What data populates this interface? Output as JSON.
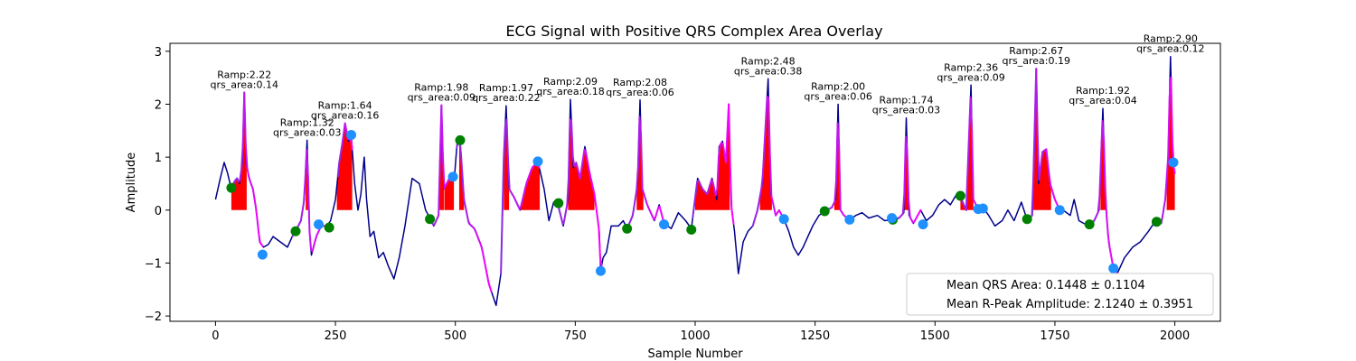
{
  "chart_data": {
    "type": "line",
    "title": "ECG Signal with Positive QRS Complex Area Overlay",
    "xlabel": "Sample Number",
    "ylabel": "Amplitude",
    "xlim": [
      -95,
      2095
    ],
    "ylim": [
      -2.1,
      3.15
    ],
    "xticks": [
      0,
      250,
      500,
      750,
      1000,
      1250,
      1500,
      1750,
      2000
    ],
    "yticks": [
      -2,
      -1,
      0,
      1,
      2,
      3
    ],
    "grid": false,
    "legend_position": "bottom-right",
    "legend_entries": [
      "Mean QRS Area: 0.1448 ± 0.1104",
      "Mean R-Peak Amplitude: 2.1240 ± 0.3951"
    ],
    "colors": {
      "ecg": "#00008b",
      "qrs_segment_start": "#8a2be2",
      "qrs_segment_end": "#ff00ff",
      "area_fill": "#ff0000",
      "onset_marker": "#008000",
      "offset_marker": "#1e90ff"
    },
    "ecg_keypoints": [
      [
        0,
        0.2
      ],
      [
        10,
        0.6
      ],
      [
        18,
        0.9
      ],
      [
        25,
        0.7
      ],
      [
        33,
        0.4
      ],
      [
        40,
        0.55
      ],
      [
        45,
        0.6
      ],
      [
        50,
        0.5
      ],
      [
        56,
        0.9
      ],
      [
        60,
        2.22
      ],
      [
        64,
        0.9
      ],
      [
        70,
        0.6
      ],
      [
        78,
        0.4
      ],
      [
        85,
        0.0
      ],
      [
        92,
        -0.6
      ],
      [
        100,
        -0.7
      ],
      [
        110,
        -0.65
      ],
      [
        120,
        -0.5
      ],
      [
        135,
        -0.6
      ],
      [
        150,
        -0.7
      ],
      [
        160,
        -0.5
      ],
      [
        167,
        -0.4
      ],
      [
        178,
        -0.2
      ],
      [
        185,
        0.2
      ],
      [
        191,
        1.32
      ],
      [
        196,
        -0.4
      ],
      [
        200,
        -0.85
      ],
      [
        210,
        -0.5
      ],
      [
        220,
        -0.3
      ],
      [
        232,
        -0.3
      ],
      [
        240,
        -0.2
      ],
      [
        250,
        0.2
      ],
      [
        258,
        0.9
      ],
      [
        265,
        1.3
      ],
      [
        270,
        1.64
      ],
      [
        277,
        1.3
      ],
      [
        283,
        1.4
      ],
      [
        290,
        0.5
      ],
      [
        297,
        0.0
      ],
      [
        303,
        0.3
      ],
      [
        310,
        1.0
      ],
      [
        315,
        0.2
      ],
      [
        322,
        -0.5
      ],
      [
        330,
        -0.4
      ],
      [
        340,
        -0.9
      ],
      [
        350,
        -0.8
      ],
      [
        360,
        -1.05
      ],
      [
        372,
        -1.3
      ],
      [
        383,
        -0.9
      ],
      [
        395,
        -0.3
      ],
      [
        410,
        0.6
      ],
      [
        425,
        0.5
      ],
      [
        438,
        0.0
      ],
      [
        447,
        -0.15
      ],
      [
        455,
        -0.3
      ],
      [
        465,
        -0.1
      ],
      [
        471,
        1.98
      ],
      [
        476,
        0.4
      ],
      [
        482,
        0.5
      ],
      [
        490,
        0.65
      ],
      [
        498,
        0.6
      ],
      [
        504,
        1.3
      ],
      [
        510,
        1.3
      ],
      [
        518,
        0.2
      ],
      [
        528,
        -0.25
      ],
      [
        540,
        -0.35
      ],
      [
        555,
        -0.7
      ],
      [
        570,
        -1.4
      ],
      [
        585,
        -1.8
      ],
      [
        595,
        -1.2
      ],
      [
        601,
        1.0
      ],
      [
        606,
        1.97
      ],
      [
        612,
        0.4
      ],
      [
        622,
        0.25
      ],
      [
        635,
        0.0
      ],
      [
        648,
        0.5
      ],
      [
        660,
        0.8
      ],
      [
        672,
        0.92
      ],
      [
        685,
        0.4
      ],
      [
        695,
        -0.2
      ],
      [
        705,
        0.15
      ],
      [
        714,
        0.1
      ],
      [
        725,
        -0.3
      ],
      [
        735,
        0.2
      ],
      [
        740,
        2.09
      ],
      [
        746,
        0.8
      ],
      [
        752,
        0.9
      ],
      [
        760,
        0.6
      ],
      [
        770,
        1.2
      ],
      [
        780,
        0.7
      ],
      [
        790,
        0.3
      ],
      [
        800,
        -0.4
      ],
      [
        803,
        -1.15
      ],
      [
        808,
        -0.9
      ],
      [
        815,
        -0.8
      ],
      [
        825,
        -0.3
      ],
      [
        840,
        -0.3
      ],
      [
        850,
        -0.2
      ],
      [
        858,
        -0.35
      ],
      [
        870,
        -0.1
      ],
      [
        880,
        0.5
      ],
      [
        885,
        2.08
      ],
      [
        890,
        0.4
      ],
      [
        900,
        0.1
      ],
      [
        915,
        -0.2
      ],
      [
        925,
        0.1
      ],
      [
        935,
        -0.25
      ],
      [
        950,
        -0.35
      ],
      [
        965,
        -0.05
      ],
      [
        980,
        -0.2
      ],
      [
        992,
        -0.35
      ],
      [
        1005,
        0.6
      ],
      [
        1015,
        0.4
      ],
      [
        1025,
        0.3
      ],
      [
        1035,
        0.6
      ],
      [
        1045,
        0.2
      ],
      [
        1050,
        1.2
      ],
      [
        1057,
        1.3
      ],
      [
        1064,
        0.9
      ],
      [
        1070,
        2.0
      ],
      [
        1075,
        0.1
      ],
      [
        1082,
        -0.4
      ],
      [
        1090,
        -1.2
      ],
      [
        1100,
        -0.6
      ],
      [
        1110,
        -0.4
      ],
      [
        1120,
        -0.3
      ],
      [
        1130,
        0.0
      ],
      [
        1140,
        0.5
      ],
      [
        1148,
        1.8
      ],
      [
        1152,
        2.48
      ],
      [
        1158,
        0.3
      ],
      [
        1168,
        -0.1
      ],
      [
        1175,
        0.0
      ],
      [
        1185,
        -0.17
      ],
      [
        1195,
        -0.4
      ],
      [
        1205,
        -0.7
      ],
      [
        1215,
        -0.85
      ],
      [
        1225,
        -0.7
      ],
      [
        1235,
        -0.5
      ],
      [
        1245,
        -0.3
      ],
      [
        1258,
        -0.1
      ],
      [
        1270,
        -0.02
      ],
      [
        1285,
        0.05
      ],
      [
        1293,
        0.2
      ],
      [
        1298,
        2.0
      ],
      [
        1303,
        0.0
      ],
      [
        1310,
        -0.1
      ],
      [
        1322,
        -0.18
      ],
      [
        1335,
        -0.1
      ],
      [
        1348,
        -0.05
      ],
      [
        1362,
        -0.15
      ],
      [
        1380,
        -0.1
      ],
      [
        1395,
        -0.2
      ],
      [
        1412,
        -0.18
      ],
      [
        1425,
        -0.15
      ],
      [
        1435,
        -0.05
      ],
      [
        1440,
        1.74
      ],
      [
        1446,
        -0.1
      ],
      [
        1455,
        -0.25
      ],
      [
        1470,
        0.0
      ],
      [
        1482,
        -0.2
      ],
      [
        1495,
        -0.1
      ],
      [
        1508,
        0.1
      ],
      [
        1520,
        0.2
      ],
      [
        1532,
        0.1
      ],
      [
        1545,
        0.3
      ],
      [
        1553,
        0.25
      ],
      [
        1565,
        0.0
      ],
      [
        1575,
        2.36
      ],
      [
        1580,
        0.2
      ],
      [
        1590,
        0.02
      ],
      [
        1600,
        0.05
      ],
      [
        1612,
        -0.1
      ],
      [
        1625,
        -0.3
      ],
      [
        1640,
        -0.2
      ],
      [
        1652,
        0.0
      ],
      [
        1665,
        -0.2
      ],
      [
        1680,
        0.15
      ],
      [
        1692,
        -0.18
      ],
      [
        1703,
        -0.1
      ],
      [
        1711,
        2.67
      ],
      [
        1716,
        0.5
      ],
      [
        1724,
        1.1
      ],
      [
        1732,
        1.15
      ],
      [
        1740,
        0.5
      ],
      [
        1750,
        0.2
      ],
      [
        1760,
        0.0
      ],
      [
        1770,
        -0.02
      ],
      [
        1782,
        -0.1
      ],
      [
        1790,
        0.2
      ],
      [
        1800,
        -0.2
      ],
      [
        1810,
        -0.25
      ],
      [
        1822,
        -0.3
      ],
      [
        1832,
        -0.2
      ],
      [
        1842,
        0.0
      ],
      [
        1850,
        1.92
      ],
      [
        1856,
        0.1
      ],
      [
        1862,
        -0.6
      ],
      [
        1872,
        -1.1
      ],
      [
        1880,
        -1.2
      ],
      [
        1895,
        -0.9
      ],
      [
        1912,
        -0.7
      ],
      [
        1928,
        -0.6
      ],
      [
        1945,
        -0.4
      ],
      [
        1960,
        -0.2
      ],
      [
        1972,
        -0.25
      ],
      [
        1980,
        0.2
      ],
      [
        1986,
        1.0
      ],
      [
        1991,
        2.9
      ],
      [
        1996,
        0.9
      ],
      [
        2000,
        0.7
      ]
    ],
    "qrs_segments": [
      [
        33,
        98
      ],
      [
        160,
        232
      ],
      [
        255,
        285
      ],
      [
        447,
        495
      ],
      [
        503,
        575
      ],
      [
        595,
        675
      ],
      [
        715,
        805
      ],
      [
        860,
        935
      ],
      [
        995,
        1080
      ],
      [
        1120,
        1185
      ],
      [
        1270,
        1325
      ],
      [
        1412,
        1470
      ],
      [
        1553,
        1600
      ],
      [
        1690,
        1765
      ],
      [
        1822,
        1880
      ],
      [
        1962,
        2000
      ]
    ],
    "area_fills": [
      {
        "start": 33,
        "end": 65,
        "peak": 60,
        "r_amp": 2.22
      },
      {
        "start": 188,
        "end": 194,
        "peak": 191,
        "r_amp": 1.32
      },
      {
        "start": 253,
        "end": 285,
        "peak": 270,
        "r_amp": 1.64
      },
      {
        "start": 467,
        "end": 476,
        "peak": 471,
        "r_amp": 1.98
      },
      {
        "start": 477,
        "end": 497,
        "peak": 490,
        "r_amp": 0.65
      },
      {
        "start": 508,
        "end": 518,
        "peak": 510,
        "r_amp": 1.3
      },
      {
        "start": 601,
        "end": 612,
        "peak": 606,
        "r_amp": 1.97
      },
      {
        "start": 636,
        "end": 676,
        "peak": 672,
        "r_amp": 0.92
      },
      {
        "start": 735,
        "end": 790,
        "peak": 740,
        "r_amp": 2.09
      },
      {
        "start": 878,
        "end": 892,
        "peak": 885,
        "r_amp": 2.08
      },
      {
        "start": 1000,
        "end": 1072,
        "peak": 1070,
        "r_amp": 2.0
      },
      {
        "start": 1135,
        "end": 1160,
        "peak": 1152,
        "r_amp": 2.48
      },
      {
        "start": 1290,
        "end": 1303,
        "peak": 1298,
        "r_amp": 2.0
      },
      {
        "start": 1435,
        "end": 1446,
        "peak": 1440,
        "r_amp": 1.74
      },
      {
        "start": 1553,
        "end": 1580,
        "peak": 1575,
        "r_amp": 2.36
      },
      {
        "start": 1705,
        "end": 1742,
        "peak": 1711,
        "r_amp": 2.67
      },
      {
        "start": 1845,
        "end": 1856,
        "peak": 1850,
        "r_amp": 1.92
      },
      {
        "start": 1983,
        "end": 2000,
        "peak": 1991,
        "r_amp": 2.9
      }
    ],
    "onset_markers": [
      [
        33,
        0.42
      ],
      [
        167,
        -0.4
      ],
      [
        237,
        -0.33
      ],
      [
        447,
        -0.17
      ],
      [
        510,
        1.32
      ],
      [
        715,
        0.13
      ],
      [
        858,
        -0.35
      ],
      [
        992,
        -0.37
      ],
      [
        1270,
        -0.02
      ],
      [
        1412,
        -0.18
      ],
      [
        1553,
        0.27
      ],
      [
        1692,
        -0.17
      ],
      [
        1822,
        -0.27
      ],
      [
        1962,
        -0.22
      ]
    ],
    "offset_markers": [
      [
        98,
        -0.84
      ],
      [
        215,
        -0.27
      ],
      [
        283,
        1.42
      ],
      [
        495,
        0.63
      ],
      [
        672,
        0.92
      ],
      [
        803,
        -1.15
      ],
      [
        935,
        -0.27
      ],
      [
        1185,
        -0.17
      ],
      [
        1322,
        -0.18
      ],
      [
        1410,
        -0.15
      ],
      [
        1475,
        -0.27
      ],
      [
        1590,
        0.02
      ],
      [
        1600,
        0.03
      ],
      [
        1760,
        0.0
      ],
      [
        1872,
        -1.1
      ],
      [
        1997,
        0.9
      ]
    ],
    "annotations": [
      {
        "x": 60,
        "y": 2.22,
        "r": "Ramp:2.22",
        "q": "qrs_area:0.14"
      },
      {
        "x": 191,
        "y": 1.32,
        "r": "Ramp:1.32",
        "q": "qrs_area:0.03"
      },
      {
        "x": 270,
        "y": 1.64,
        "r": "Ramp:1.64",
        "q": "qrs_area:0.16"
      },
      {
        "x": 471,
        "y": 1.98,
        "r": "Ramp:1.98",
        "q": "qrs_area:0.09"
      },
      {
        "x": 606,
        "y": 1.97,
        "r": "Ramp:1.97",
        "q": "qrs_area:0.22"
      },
      {
        "x": 740,
        "y": 2.09,
        "r": "Ramp:2.09",
        "q": "qrs_area:0.18"
      },
      {
        "x": 885,
        "y": 2.08,
        "r": "Ramp:2.08",
        "q": "qrs_area:0.06"
      },
      {
        "x": 1152,
        "y": 2.48,
        "r": "Ramp:2.48",
        "q": "qrs_area:0.38"
      },
      {
        "x": 1298,
        "y": 2.0,
        "r": "Ramp:2.00",
        "q": "qrs_area:0.06"
      },
      {
        "x": 1440,
        "y": 1.74,
        "r": "Ramp:1.74",
        "q": "qrs_area:0.03"
      },
      {
        "x": 1575,
        "y": 2.36,
        "r": "Ramp:2.36",
        "q": "qrs_area:0.09"
      },
      {
        "x": 1711,
        "y": 2.67,
        "r": "Ramp:2.67",
        "q": "qrs_area:0.19"
      },
      {
        "x": 1850,
        "y": 1.92,
        "r": "Ramp:1.92",
        "q": "qrs_area:0.04"
      },
      {
        "x": 1991,
        "y": 2.9,
        "r": "Ramp:2.90",
        "q": "qrs_area:0.12"
      }
    ]
  }
}
